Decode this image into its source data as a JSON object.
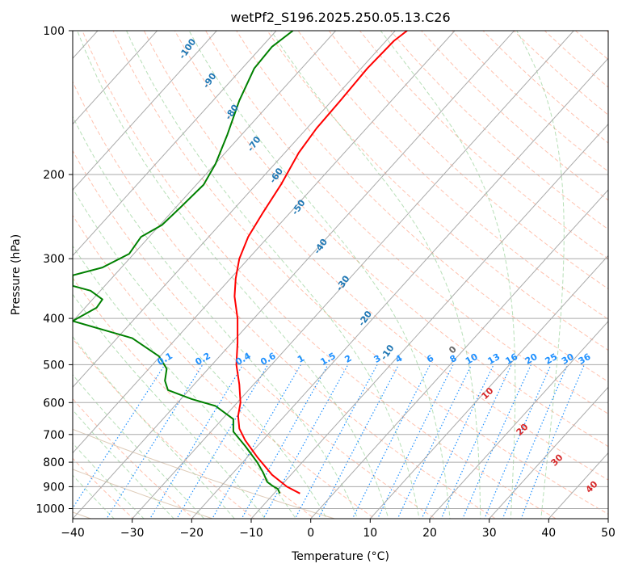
{
  "chart_data": {
    "type": "line",
    "title": "wetPf2_S196.2025.250.05.13.C26",
    "xlabel": "Temperature (°C)",
    "ylabel": "Pressure (hPa)",
    "xlim": [
      -40,
      50
    ],
    "ylim": [
      1050,
      100
    ],
    "y_scale": "log",
    "x_ticks": [
      -40,
      -30,
      -20,
      -10,
      0,
      10,
      20,
      30,
      40,
      50
    ],
    "y_ticks": [
      100,
      200,
      300,
      400,
      500,
      600,
      700,
      800,
      900,
      1000
    ],
    "grid": true,
    "series": [
      {
        "color": "#ff0000",
        "points": [
          [
            -1.8,
            930
          ],
          [
            -4.0,
            900
          ],
          [
            -6.5,
            850
          ],
          [
            -9.0,
            780
          ],
          [
            -11.0,
            720
          ],
          [
            -12.0,
            680
          ],
          [
            -12.2,
            640
          ],
          [
            -11.8,
            600
          ],
          [
            -12.0,
            550
          ],
          [
            -12.5,
            500
          ],
          [
            -12.3,
            450
          ],
          [
            -12.3,
            400
          ],
          [
            -12.8,
            360
          ],
          [
            -12.6,
            330
          ],
          [
            -12.0,
            300
          ],
          [
            -10.5,
            270
          ],
          [
            -8.0,
            240
          ],
          [
            -5.0,
            210
          ],
          [
            -2.0,
            180
          ],
          [
            1.0,
            160
          ],
          [
            5.0,
            140
          ],
          [
            9.5,
            120
          ],
          [
            14.0,
            105
          ],
          [
            16.2,
            100
          ]
        ]
      },
      {
        "color": "#008000",
        "points": [
          [
            -5.2,
            930
          ],
          [
            -5.5,
            910
          ],
          [
            -6.5,
            895
          ],
          [
            -7.3,
            880
          ],
          [
            -8.0,
            840
          ],
          [
            -9.0,
            800
          ],
          [
            -11.0,
            740
          ],
          [
            -13.0,
            690
          ],
          [
            -13.0,
            650
          ],
          [
            -16.0,
            610
          ],
          [
            -20.0,
            590
          ],
          [
            -24.0,
            565
          ],
          [
            -24.5,
            540
          ],
          [
            -24.2,
            510
          ],
          [
            -25.5,
            480
          ],
          [
            -30.0,
            440
          ],
          [
            -40.0,
            405
          ],
          [
            -36.0,
            380
          ],
          [
            -35.0,
            365
          ],
          [
            -37.0,
            350
          ],
          [
            -40.0,
            342
          ],
          [
            -40.0,
            325
          ],
          [
            -35.0,
            313
          ],
          [
            -30.5,
            293
          ],
          [
            -28.5,
            270
          ],
          [
            -25.0,
            255
          ],
          [
            -22.0,
            235
          ],
          [
            -18.0,
            210
          ],
          [
            -16.0,
            190
          ],
          [
            -14.0,
            165
          ],
          [
            -12.0,
            140
          ],
          [
            -9.5,
            120
          ],
          [
            -6.5,
            108
          ],
          [
            -3.0,
            100
          ]
        ]
      }
    ],
    "dry_adiabat_labels": [
      "-100",
      "-90",
      "-80",
      "-70",
      "-60",
      "-50",
      "-40",
      "-30",
      "-20",
      "-10"
    ],
    "mixing_ratio_labels": [
      "0.1",
      "0.2",
      "0.4",
      "0.6",
      "1",
      "1.5",
      "2",
      "3",
      "4",
      "6",
      "8",
      "10",
      "13",
      "16",
      "20",
      "25",
      "30",
      "36"
    ],
    "moist_adiabat_labels": [
      "0",
      "10",
      "20",
      "30",
      "40"
    ],
    "colors": {
      "temperature": "#ff0000",
      "dewpoint": "#008000",
      "dry_adiabat_label": "#1f77b4",
      "mixing_ratio": "#1e90ff",
      "moist_adiabat_label": "#d62728",
      "zero_label": "#666666"
    }
  }
}
